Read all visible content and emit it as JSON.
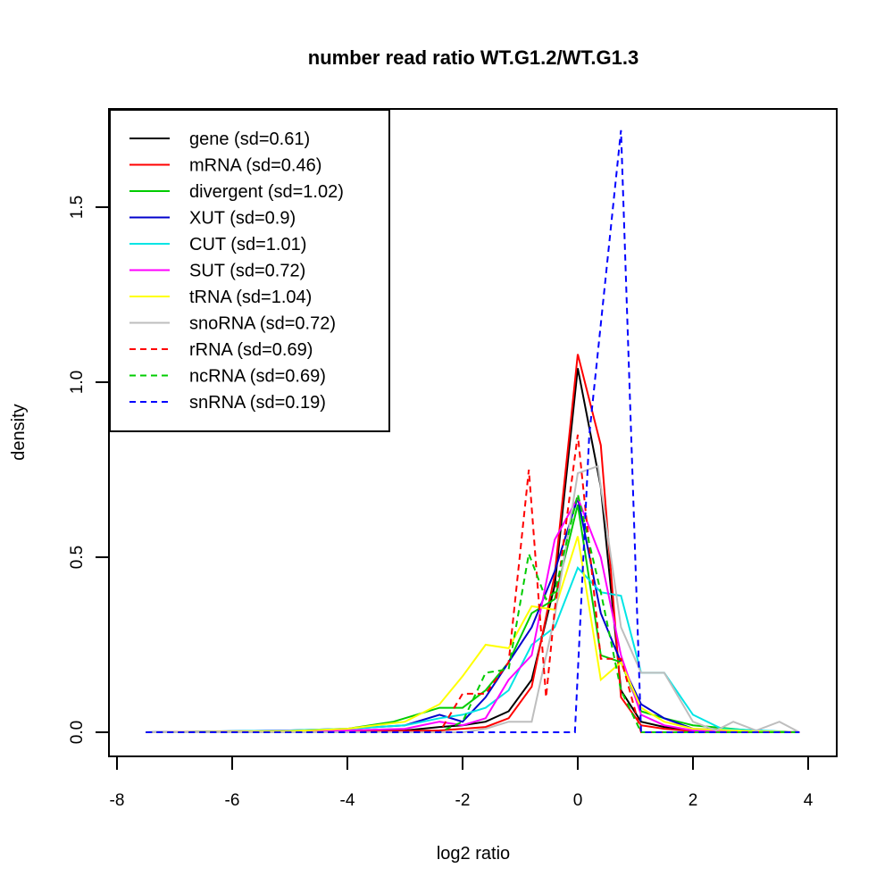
{
  "chart_data": {
    "type": "line",
    "title": "number read ratio WT.G1.2/WT.G1.3",
    "xlabel": "log2 ratio",
    "ylabel": "density",
    "xlim": [
      -8,
      4
    ],
    "ylim": [
      0,
      1.75
    ],
    "xticks": [
      -8,
      -6,
      -4,
      -2,
      0,
      2,
      4
    ],
    "xtick_labels": [
      "-8",
      "-6",
      "-4",
      "-2",
      "0",
      "2",
      "4"
    ],
    "yticks": [
      0,
      0.5,
      1.0,
      1.5
    ],
    "ytick_labels": [
      "0.0",
      "0.5",
      "1.0",
      "1.5"
    ],
    "grid": false,
    "legend_position": "top-left",
    "note": "Series points are visual estimates read from a raster image (peaks approx +/-0.02 density; low-density tails approximate). sd values, axis ranges and tick labels are exact printed text.",
    "series": [
      {
        "name": "gene (sd=0.61)",
        "color": "#000000",
        "dash": false,
        "points": [
          [
            -7.5,
            0
          ],
          [
            -4.5,
            0.002
          ],
          [
            -3,
            0.005
          ],
          [
            -2.4,
            0.015
          ],
          [
            -2,
            0.02
          ],
          [
            -1.6,
            0.03
          ],
          [
            -1.2,
            0.06
          ],
          [
            -0.8,
            0.15
          ],
          [
            -0.4,
            0.42
          ],
          [
            0,
            1.04
          ],
          [
            0.4,
            0.7
          ],
          [
            0.75,
            0.12
          ],
          [
            1.1,
            0.03
          ],
          [
            1.5,
            0.015
          ],
          [
            2,
            0.005
          ],
          [
            3,
            0.001
          ],
          [
            3.85,
            0
          ]
        ]
      },
      {
        "name": "mRNA (sd=0.46)",
        "color": "#ff0000",
        "dash": false,
        "points": [
          [
            -7.5,
            0
          ],
          [
            -4,
            0.001
          ],
          [
            -2.4,
            0.005
          ],
          [
            -2,
            0.01
          ],
          [
            -1.6,
            0.015
          ],
          [
            -1.2,
            0.04
          ],
          [
            -0.8,
            0.13
          ],
          [
            -0.4,
            0.45
          ],
          [
            0,
            1.08
          ],
          [
            0.4,
            0.82
          ],
          [
            0.75,
            0.1
          ],
          [
            1.1,
            0.02
          ],
          [
            1.5,
            0.01
          ],
          [
            2,
            0.003
          ],
          [
            3.85,
            0
          ]
        ]
      },
      {
        "name": "divergent (sd=1.02)",
        "color": "#00cc00",
        "dash": false,
        "points": [
          [
            -7.5,
            0
          ],
          [
            -5,
            0.003
          ],
          [
            -4,
            0.01
          ],
          [
            -3.2,
            0.03
          ],
          [
            -2.4,
            0.07
          ],
          [
            -2,
            0.07
          ],
          [
            -1.6,
            0.12
          ],
          [
            -1.2,
            0.2
          ],
          [
            -0.8,
            0.34
          ],
          [
            -0.4,
            0.38
          ],
          [
            0,
            0.65
          ],
          [
            0.4,
            0.22
          ],
          [
            0.75,
            0.2
          ],
          [
            1.1,
            0.06
          ],
          [
            1.5,
            0.04
          ],
          [
            2,
            0.02
          ],
          [
            3,
            0.005
          ],
          [
            3.85,
            0
          ]
        ]
      },
      {
        "name": "XUT (sd=0.9)",
        "color": "#0000cc",
        "dash": false,
        "points": [
          [
            -7.5,
            0
          ],
          [
            -5,
            0.005
          ],
          [
            -4,
            0.01
          ],
          [
            -3,
            0.02
          ],
          [
            -2.4,
            0.05
          ],
          [
            -2,
            0.03
          ],
          [
            -1.6,
            0.1
          ],
          [
            -1.2,
            0.2
          ],
          [
            -0.8,
            0.3
          ],
          [
            -0.4,
            0.46
          ],
          [
            0,
            0.67
          ],
          [
            0.4,
            0.34
          ],
          [
            0.75,
            0.2
          ],
          [
            1.1,
            0.08
          ],
          [
            1.5,
            0.04
          ],
          [
            2,
            0.01
          ],
          [
            3,
            0.005
          ],
          [
            3.85,
            0
          ]
        ]
      },
      {
        "name": "CUT (sd=1.01)",
        "color": "#00e5e5",
        "dash": false,
        "points": [
          [
            -7.5,
            0
          ],
          [
            -5,
            0.005
          ],
          [
            -4,
            0.01
          ],
          [
            -3,
            0.02
          ],
          [
            -2.4,
            0.04
          ],
          [
            -2,
            0.05
          ],
          [
            -1.6,
            0.07
          ],
          [
            -1.2,
            0.12
          ],
          [
            -0.8,
            0.25
          ],
          [
            -0.4,
            0.3
          ],
          [
            0,
            0.47
          ],
          [
            0.4,
            0.4
          ],
          [
            0.75,
            0.39
          ],
          [
            1.1,
            0.17
          ],
          [
            1.5,
            0.17
          ],
          [
            2,
            0.05
          ],
          [
            2.5,
            0.01
          ],
          [
            3.85,
            0
          ]
        ]
      },
      {
        "name": "SUT (sd=0.72)",
        "color": "#ff00ff",
        "dash": false,
        "points": [
          [
            -7.5,
            0
          ],
          [
            -4,
            0.005
          ],
          [
            -3,
            0.01
          ],
          [
            -2.4,
            0.03
          ],
          [
            -2,
            0.02
          ],
          [
            -1.6,
            0.04
          ],
          [
            -1.2,
            0.15
          ],
          [
            -0.8,
            0.22
          ],
          [
            -0.4,
            0.55
          ],
          [
            0,
            0.67
          ],
          [
            0.4,
            0.5
          ],
          [
            0.75,
            0.22
          ],
          [
            1.1,
            0.05
          ],
          [
            1.5,
            0.02
          ],
          [
            2,
            0.005
          ],
          [
            3.85,
            0
          ]
        ]
      },
      {
        "name": "tRNA (sd=1.04)",
        "color": "#ffff00",
        "dash": false,
        "points": [
          [
            -7.5,
            0
          ],
          [
            -5,
            0.003
          ],
          [
            -4,
            0.01
          ],
          [
            -3,
            0.03
          ],
          [
            -2.4,
            0.08
          ],
          [
            -2,
            0.16
          ],
          [
            -1.6,
            0.25
          ],
          [
            -1.2,
            0.24
          ],
          [
            -0.8,
            0.36
          ],
          [
            -0.4,
            0.35
          ],
          [
            0,
            0.56
          ],
          [
            0.4,
            0.15
          ],
          [
            0.75,
            0.2
          ],
          [
            1.1,
            0.07
          ],
          [
            1.5,
            0.03
          ],
          [
            2,
            0.01
          ],
          [
            3,
            0.003
          ],
          [
            3.85,
            0
          ]
        ]
      },
      {
        "name": "snoRNA (sd=0.72)",
        "color": "#bebebe",
        "dash": false,
        "points": [
          [
            -7.5,
            0
          ],
          [
            -2,
            0
          ],
          [
            -1.6,
            0.01
          ],
          [
            -1.2,
            0.03
          ],
          [
            -0.8,
            0.03
          ],
          [
            -0.4,
            0.33
          ],
          [
            0,
            0.74
          ],
          [
            0.35,
            0.76
          ],
          [
            0.75,
            0.3
          ],
          [
            1.1,
            0.17
          ],
          [
            1.5,
            0.17
          ],
          [
            2,
            0.03
          ],
          [
            2.4,
            0.005
          ],
          [
            2.7,
            0.03
          ],
          [
            3.1,
            0.005
          ],
          [
            3.5,
            0.03
          ],
          [
            3.85,
            0
          ]
        ]
      },
      {
        "name": "rRNA (sd=0.69)",
        "color": "#ff0000",
        "dash": true,
        "points": [
          [
            -7.5,
            0
          ],
          [
            -2.4,
            0
          ],
          [
            -2,
            0.11
          ],
          [
            -1.6,
            0.11
          ],
          [
            -1.2,
            0.2
          ],
          [
            -0.85,
            0.75
          ],
          [
            -0.55,
            0.1
          ],
          [
            -0.4,
            0.35
          ],
          [
            0,
            0.85
          ],
          [
            0.4,
            0.21
          ],
          [
            0.75,
            0.21
          ],
          [
            1.1,
            0
          ],
          [
            3.85,
            0
          ]
        ]
      },
      {
        "name": "ncRNA (sd=0.69)",
        "color": "#00cc00",
        "dash": true,
        "points": [
          [
            -7.5,
            0
          ],
          [
            -2.4,
            0
          ],
          [
            -2,
            0.03
          ],
          [
            -1.6,
            0.17
          ],
          [
            -1.2,
            0.18
          ],
          [
            -0.85,
            0.51
          ],
          [
            -0.55,
            0.38
          ],
          [
            -0.4,
            0.4
          ],
          [
            0,
            0.68
          ],
          [
            0.4,
            0.4
          ],
          [
            0.75,
            0.12
          ],
          [
            1.1,
            0
          ],
          [
            3.85,
            0
          ]
        ]
      },
      {
        "name": "snRNA (sd=0.19)",
        "color": "#0000ff",
        "dash": true,
        "points": [
          [
            -7.5,
            0
          ],
          [
            -0.05,
            0
          ],
          [
            0.2,
            0.85
          ],
          [
            0.75,
            1.72
          ],
          [
            1.1,
            0
          ],
          [
            3.85,
            0
          ]
        ]
      }
    ]
  }
}
